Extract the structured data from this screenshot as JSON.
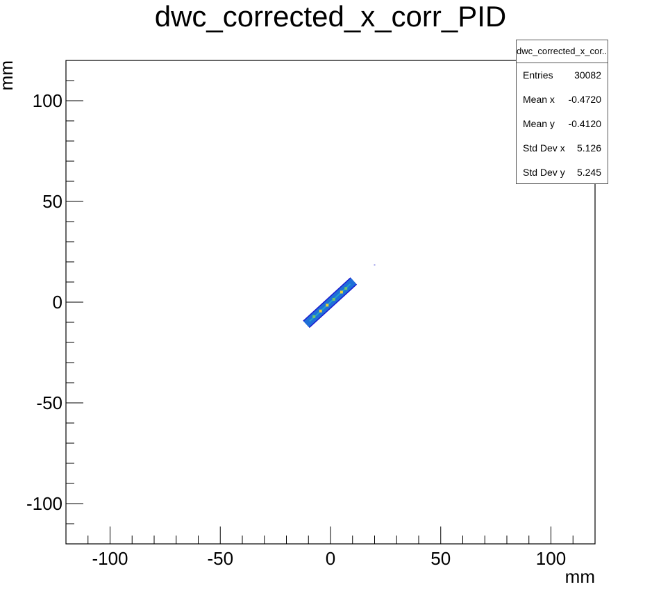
{
  "chart_data": {
    "type": "heatmap",
    "title": "dwc_corrected_x_corr_PID",
    "xlabel": "mm",
    "ylabel": "mm",
    "xlim": [
      -120,
      120
    ],
    "ylim": [
      -120,
      120
    ],
    "x_ticks": [
      -100,
      -50,
      0,
      50,
      100
    ],
    "y_ticks": [
      100,
      50,
      0,
      -50,
      -100
    ],
    "x_tick_labels": [
      "-100",
      "-50",
      "0",
      "50",
      "100"
    ],
    "y_tick_labels": [
      "100",
      "50",
      "0",
      "-50",
      "-100"
    ],
    "grid": false,
    "colormap": [
      "#1a1ad0",
      "#1f6fd8",
      "#23a3c8",
      "#6fc86a",
      "#e8d23a"
    ],
    "band": {
      "x_start": -11,
      "x_end": 10.5,
      "slope": 1.0,
      "intercept": 0.0,
      "width": 1.6
    },
    "hotspots": [
      {
        "x": -7.5,
        "y": -7.2,
        "level": 2
      },
      {
        "x": -4.5,
        "y": -4.4,
        "level": 3
      },
      {
        "x": -1.5,
        "y": -1.5,
        "level": 3
      },
      {
        "x": 1.5,
        "y": 1.4,
        "level": 2
      },
      {
        "x": 5.0,
        "y": 5.0,
        "level": 3
      },
      {
        "x": 7.0,
        "y": 6.8,
        "level": 2
      }
    ],
    "stray_points": [
      {
        "x": 20.0,
        "y": 18.3
      }
    ]
  },
  "stats": {
    "name": "dwc_corrected_x_cor...",
    "rows": [
      {
        "label": "Entries",
        "value": "30082"
      },
      {
        "label": "Mean x",
        "value": "-0.4720"
      },
      {
        "label": "Mean y",
        "value": "-0.4120"
      },
      {
        "label": "Std Dev x",
        "value": "5.126"
      },
      {
        "label": "Std Dev y",
        "value": "5.245"
      }
    ]
  }
}
